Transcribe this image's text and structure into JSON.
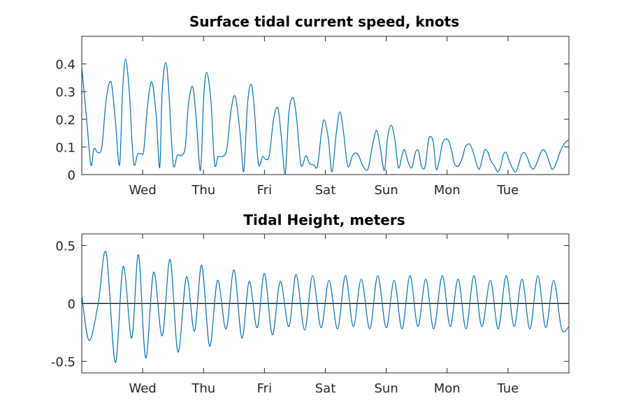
{
  "chart_data": [
    {
      "type": "line",
      "title": "Surface tidal current speed, knots",
      "xlabel": "",
      "ylabel": "",
      "x_unit": "days from axis start",
      "xlim": [
        0,
        8
      ],
      "ylim": [
        0,
        0.5
      ],
      "x_ticks": [
        1,
        2,
        3,
        4,
        5,
        6,
        7
      ],
      "x_tick_labels": [
        "Wed",
        "Thu",
        "Fri",
        "Sat",
        "Sun",
        "Mon",
        "Tue"
      ],
      "y_ticks": [
        0,
        0.1,
        0.2,
        0.3,
        0.4
      ],
      "y_tick_labels": [
        "0",
        "0.1",
        "0.2",
        "0.3",
        "0.4"
      ],
      "grid": false,
      "series": [
        {
          "color": "#0072bd",
          "x": [
            0,
            0.08,
            0.15,
            0.2,
            0.26,
            0.33,
            0.4,
            0.48,
            0.55,
            0.62,
            0.67,
            0.72,
            0.78,
            0.85,
            0.92,
            0.98,
            1.02,
            1.08,
            1.15,
            1.22,
            1.28,
            1.32,
            1.38,
            1.43,
            1.5,
            1.57,
            1.64,
            1.7,
            1.75,
            1.82,
            1.88,
            1.95,
            2.0,
            2.05,
            2.12,
            2.18,
            2.24,
            2.3,
            2.38,
            2.45,
            2.52,
            2.6,
            2.66,
            2.72,
            2.78,
            2.83,
            2.9,
            2.97,
            3.02,
            3.08,
            3.15,
            3.22,
            3.28,
            3.34,
            3.4,
            3.47,
            3.53,
            3.6,
            3.68,
            3.74,
            3.81,
            3.87,
            3.93,
            3.98,
            4.05,
            4.11,
            4.18,
            4.24,
            4.3,
            4.37,
            4.45,
            4.53,
            4.62,
            4.7,
            4.77,
            4.84,
            4.9,
            4.97,
            5.02,
            5.08,
            5.14,
            5.2,
            5.26,
            5.3,
            5.36,
            5.42,
            5.48,
            5.53,
            5.58,
            5.64,
            5.7,
            5.77,
            5.82,
            5.87,
            5.92,
            5.97,
            6.03,
            6.08,
            6.12,
            6.18,
            6.25,
            6.3,
            6.37,
            6.43,
            6.48,
            6.53,
            6.58,
            6.62,
            6.67,
            6.72,
            6.78,
            6.83,
            6.88,
            6.92,
            6.97,
            7.02,
            7.08,
            7.13,
            7.18,
            7.22,
            7.27,
            7.32,
            7.37,
            7.42,
            7.47,
            7.52,
            7.57,
            7.62,
            7.67,
            7.72,
            7.77,
            7.82,
            7.87,
            7.92,
            7.96,
            8.0
          ],
          "y": [
            0.39,
            0.2,
            0.035,
            0.095,
            0.08,
            0.1,
            0.27,
            0.335,
            0.2,
            0.035,
            0.3,
            0.418,
            0.3,
            0.045,
            0.075,
            0.075,
            0.09,
            0.25,
            0.335,
            0.22,
            0.025,
            0.3,
            0.405,
            0.3,
            0.04,
            0.07,
            0.07,
            0.1,
            0.25,
            0.318,
            0.2,
            0.015,
            0.27,
            0.37,
            0.27,
            0.04,
            0.065,
            0.065,
            0.09,
            0.23,
            0.283,
            0.15,
            0.01,
            0.25,
            0.327,
            0.25,
            0.04,
            0.065,
            0.055,
            0.07,
            0.2,
            0.241,
            0.13,
            0.0,
            0.22,
            0.278,
            0.2,
            0.035,
            0.068,
            0.04,
            0.035,
            0.03,
            0.14,
            0.198,
            0.13,
            0.01,
            0.15,
            0.227,
            0.15,
            0.03,
            0.07,
            0.075,
            0.03,
            0.02,
            0.1,
            0.16,
            0.1,
            0.015,
            0.13,
            0.178,
            0.13,
            0.025,
            0.07,
            0.09,
            0.045,
            0.025,
            0.08,
            0.085,
            0.03,
            0.03,
            0.13,
            0.12,
            0.02,
            0.05,
            0.11,
            0.128,
            0.12,
            0.08,
            0.04,
            0.03,
            0.06,
            0.1,
            0.11,
            0.08,
            0.04,
            0.02,
            0.06,
            0.09,
            0.08,
            0.05,
            0.03,
            0.01,
            0.03,
            0.07,
            0.08,
            0.05,
            0.02,
            0.01,
            0.04,
            0.07,
            0.08,
            0.06,
            0.03,
            0.02,
            0.04,
            0.07,
            0.09,
            0.08,
            0.05,
            0.02,
            0.03,
            0.06,
            0.09,
            0.11,
            0.12,
            0.125
          ]
        }
      ]
    },
    {
      "type": "line",
      "title": "Tidal Height, meters",
      "xlabel": "",
      "ylabel": "",
      "x_unit": "days from axis start",
      "xlim": [
        0,
        8
      ],
      "ylim": [
        -0.6,
        0.6
      ],
      "x_ticks": [
        1,
        2,
        3,
        4,
        5,
        6,
        7
      ],
      "x_tick_labels": [
        "Wed",
        "Thu",
        "Fri",
        "Sat",
        "Sun",
        "Mon",
        "Tue"
      ],
      "y_ticks": [
        -0.5,
        0,
        0.5
      ],
      "y_tick_labels": [
        "-0.5",
        "0",
        "0.5"
      ],
      "zero_line": true,
      "grid": false,
      "series": [
        {
          "color": "#0072bd",
          "x": [
            0,
            0.12,
            0.27,
            0.4,
            0.55,
            0.68,
            0.82,
            0.93,
            1.05,
            1.18,
            1.32,
            1.45,
            1.58,
            1.72,
            1.85,
            1.97,
            2.1,
            2.23,
            2.37,
            2.5,
            2.63,
            2.75,
            2.88,
            3.0,
            3.13,
            3.26,
            3.4,
            3.52,
            3.66,
            3.79,
            3.93,
            4.06,
            4.2,
            4.33,
            4.46,
            4.59,
            4.73,
            4.86,
            5.0,
            5.13,
            5.26,
            5.39,
            5.52,
            5.65,
            5.78,
            5.92,
            6.05,
            6.18,
            6.31,
            6.44,
            6.57,
            6.71,
            6.84,
            6.97,
            7.1,
            7.23,
            7.36,
            7.49,
            7.62,
            7.75,
            7.88,
            8.0
          ],
          "y": [
            0.07,
            -0.32,
            0.0,
            0.44,
            -0.51,
            0.32,
            -0.3,
            0.42,
            -0.47,
            0.27,
            -0.28,
            0.38,
            -0.42,
            0.23,
            -0.24,
            0.33,
            -0.37,
            0.2,
            -0.22,
            0.29,
            -0.3,
            0.19,
            -0.21,
            0.26,
            -0.27,
            0.19,
            -0.2,
            0.25,
            -0.23,
            0.24,
            -0.21,
            0.2,
            -0.22,
            0.24,
            -0.2,
            0.21,
            -0.22,
            0.24,
            -0.21,
            0.2,
            -0.22,
            0.24,
            -0.2,
            0.21,
            -0.22,
            0.24,
            -0.2,
            0.21,
            -0.22,
            0.24,
            -0.2,
            0.2,
            -0.22,
            0.24,
            -0.2,
            0.21,
            -0.22,
            0.24,
            -0.21,
            0.2,
            -0.22,
            -0.2
          ]
        }
      ]
    }
  ]
}
